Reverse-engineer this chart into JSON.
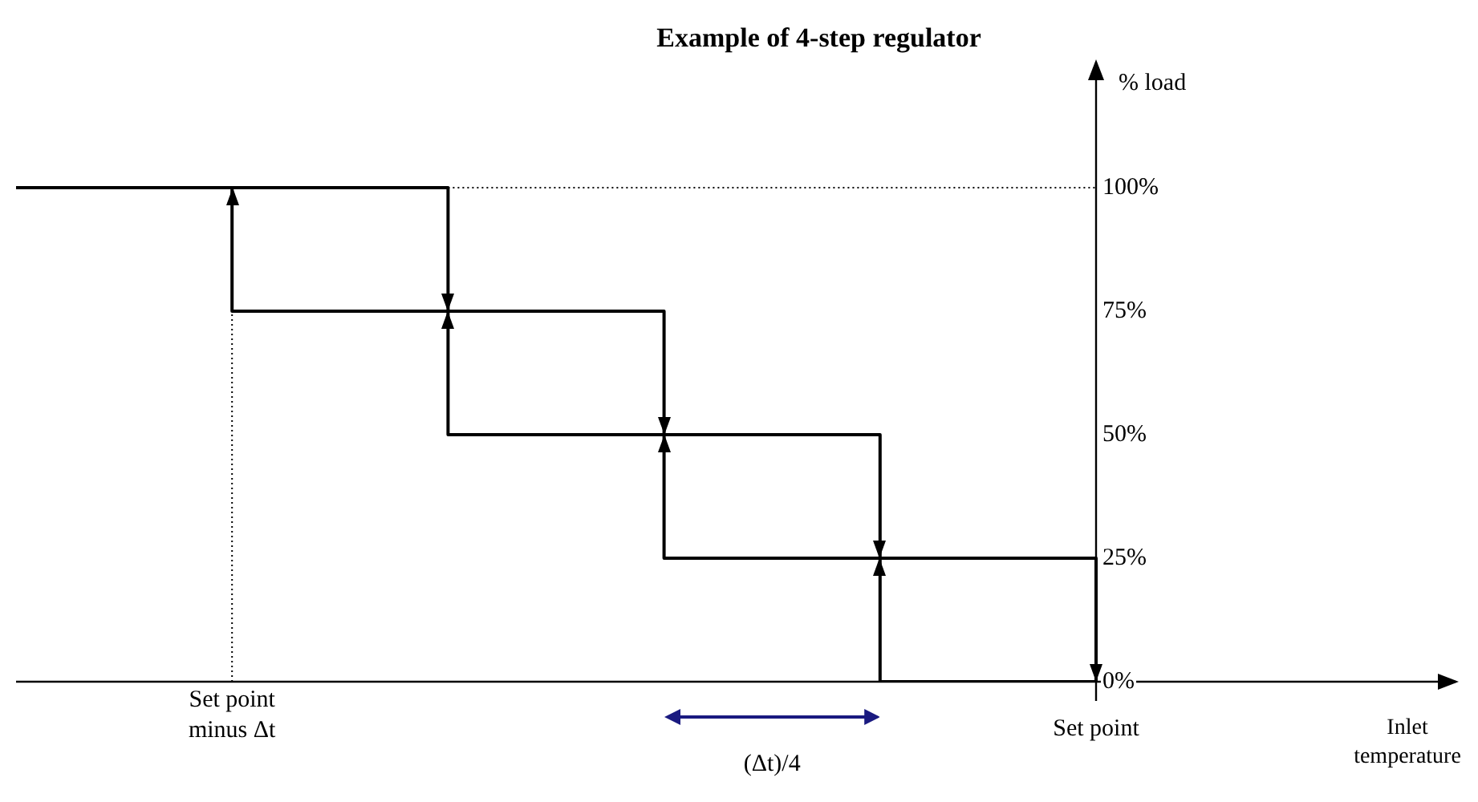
{
  "chart_data": {
    "type": "step",
    "title": "Example of 4-step regulator",
    "ylabel": "% load",
    "ylim": [
      0,
      125
    ],
    "categories": [
      null,
      "Set point minus Δt",
      null,
      null,
      null,
      "Set point"
    ],
    "yticks": [
      {
        "value": 0,
        "label": "0%"
      },
      {
        "value": 25,
        "label": "25%"
      },
      {
        "value": 50,
        "label": "50%"
      },
      {
        "value": 75,
        "label": "75%"
      },
      {
        "value": 100,
        "label": "100%"
      }
    ],
    "series": [
      {
        "color": "#000000",
        "line_style": "solid",
        "values": [
          100,
          100,
          75,
          50,
          25,
          0
        ]
      },
      {
        "color": "#000000",
        "line_style": "solid",
        "values": [
          null,
          100,
          75,
          50,
          25,
          0
        ]
      },
      {
        "type": "line",
        "color": "#000000",
        "line_style": "dotted",
        "values": [
          null,
          null,
          100,
          100,
          100,
          100
        ]
      }
    ],
    "ref_lines": [
      {
        "axis": "x",
        "value": "Set point minus Δt",
        "color": "#000000",
        "line_style": "dotted"
      }
    ],
    "annotations": [
      "(Δt)/4",
      "Inlet temperature"
    ]
  }
}
